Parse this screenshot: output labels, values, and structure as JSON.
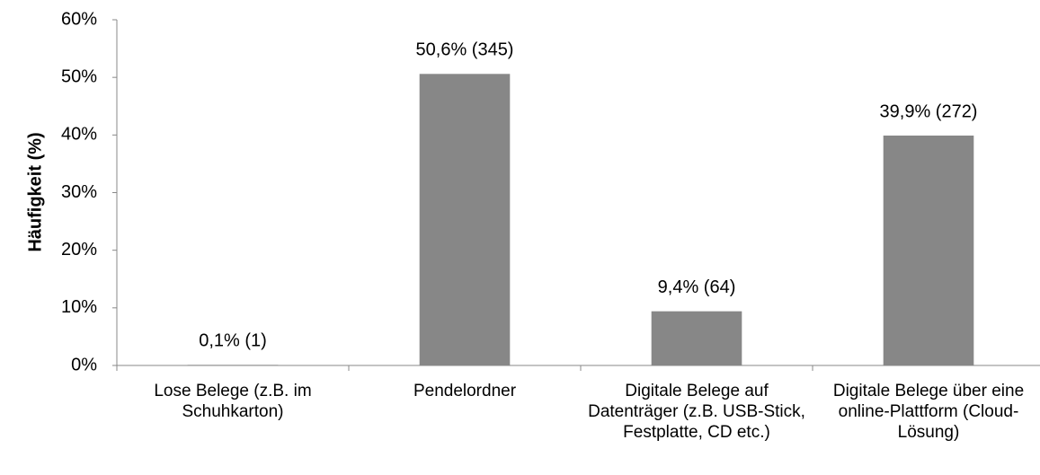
{
  "chart_data": {
    "type": "bar",
    "y_label": "Häufigkeit (%)",
    "categories": [
      "Lose Belege (z.B. im Schuhkarton)",
      "Pendelordner",
      "Digitale Belege auf Datenträger (z.B. USB-Stick, Festplatte, CD etc.)",
      "Digitale Belege über eine online-Plattform (Cloud-Lösung)"
    ],
    "values": [
      0.1,
      50.6,
      9.4,
      39.9
    ],
    "value_labels": [
      "0,1% (1)",
      "50,6% (345)",
      "9,4% (64)",
      "39,9% (272)"
    ],
    "color": "#878787",
    "ylim": [
      0,
      60
    ],
    "yticks": [
      {
        "value": 0,
        "label": "0%"
      },
      {
        "value": 10,
        "label": "10%"
      },
      {
        "value": 20,
        "label": "20%"
      },
      {
        "value": 30,
        "label": "30%"
      },
      {
        "value": 40,
        "label": "40%"
      },
      {
        "value": 50,
        "label": "50%"
      },
      {
        "value": 60,
        "label": "60%"
      }
    ],
    "grid": false
  }
}
